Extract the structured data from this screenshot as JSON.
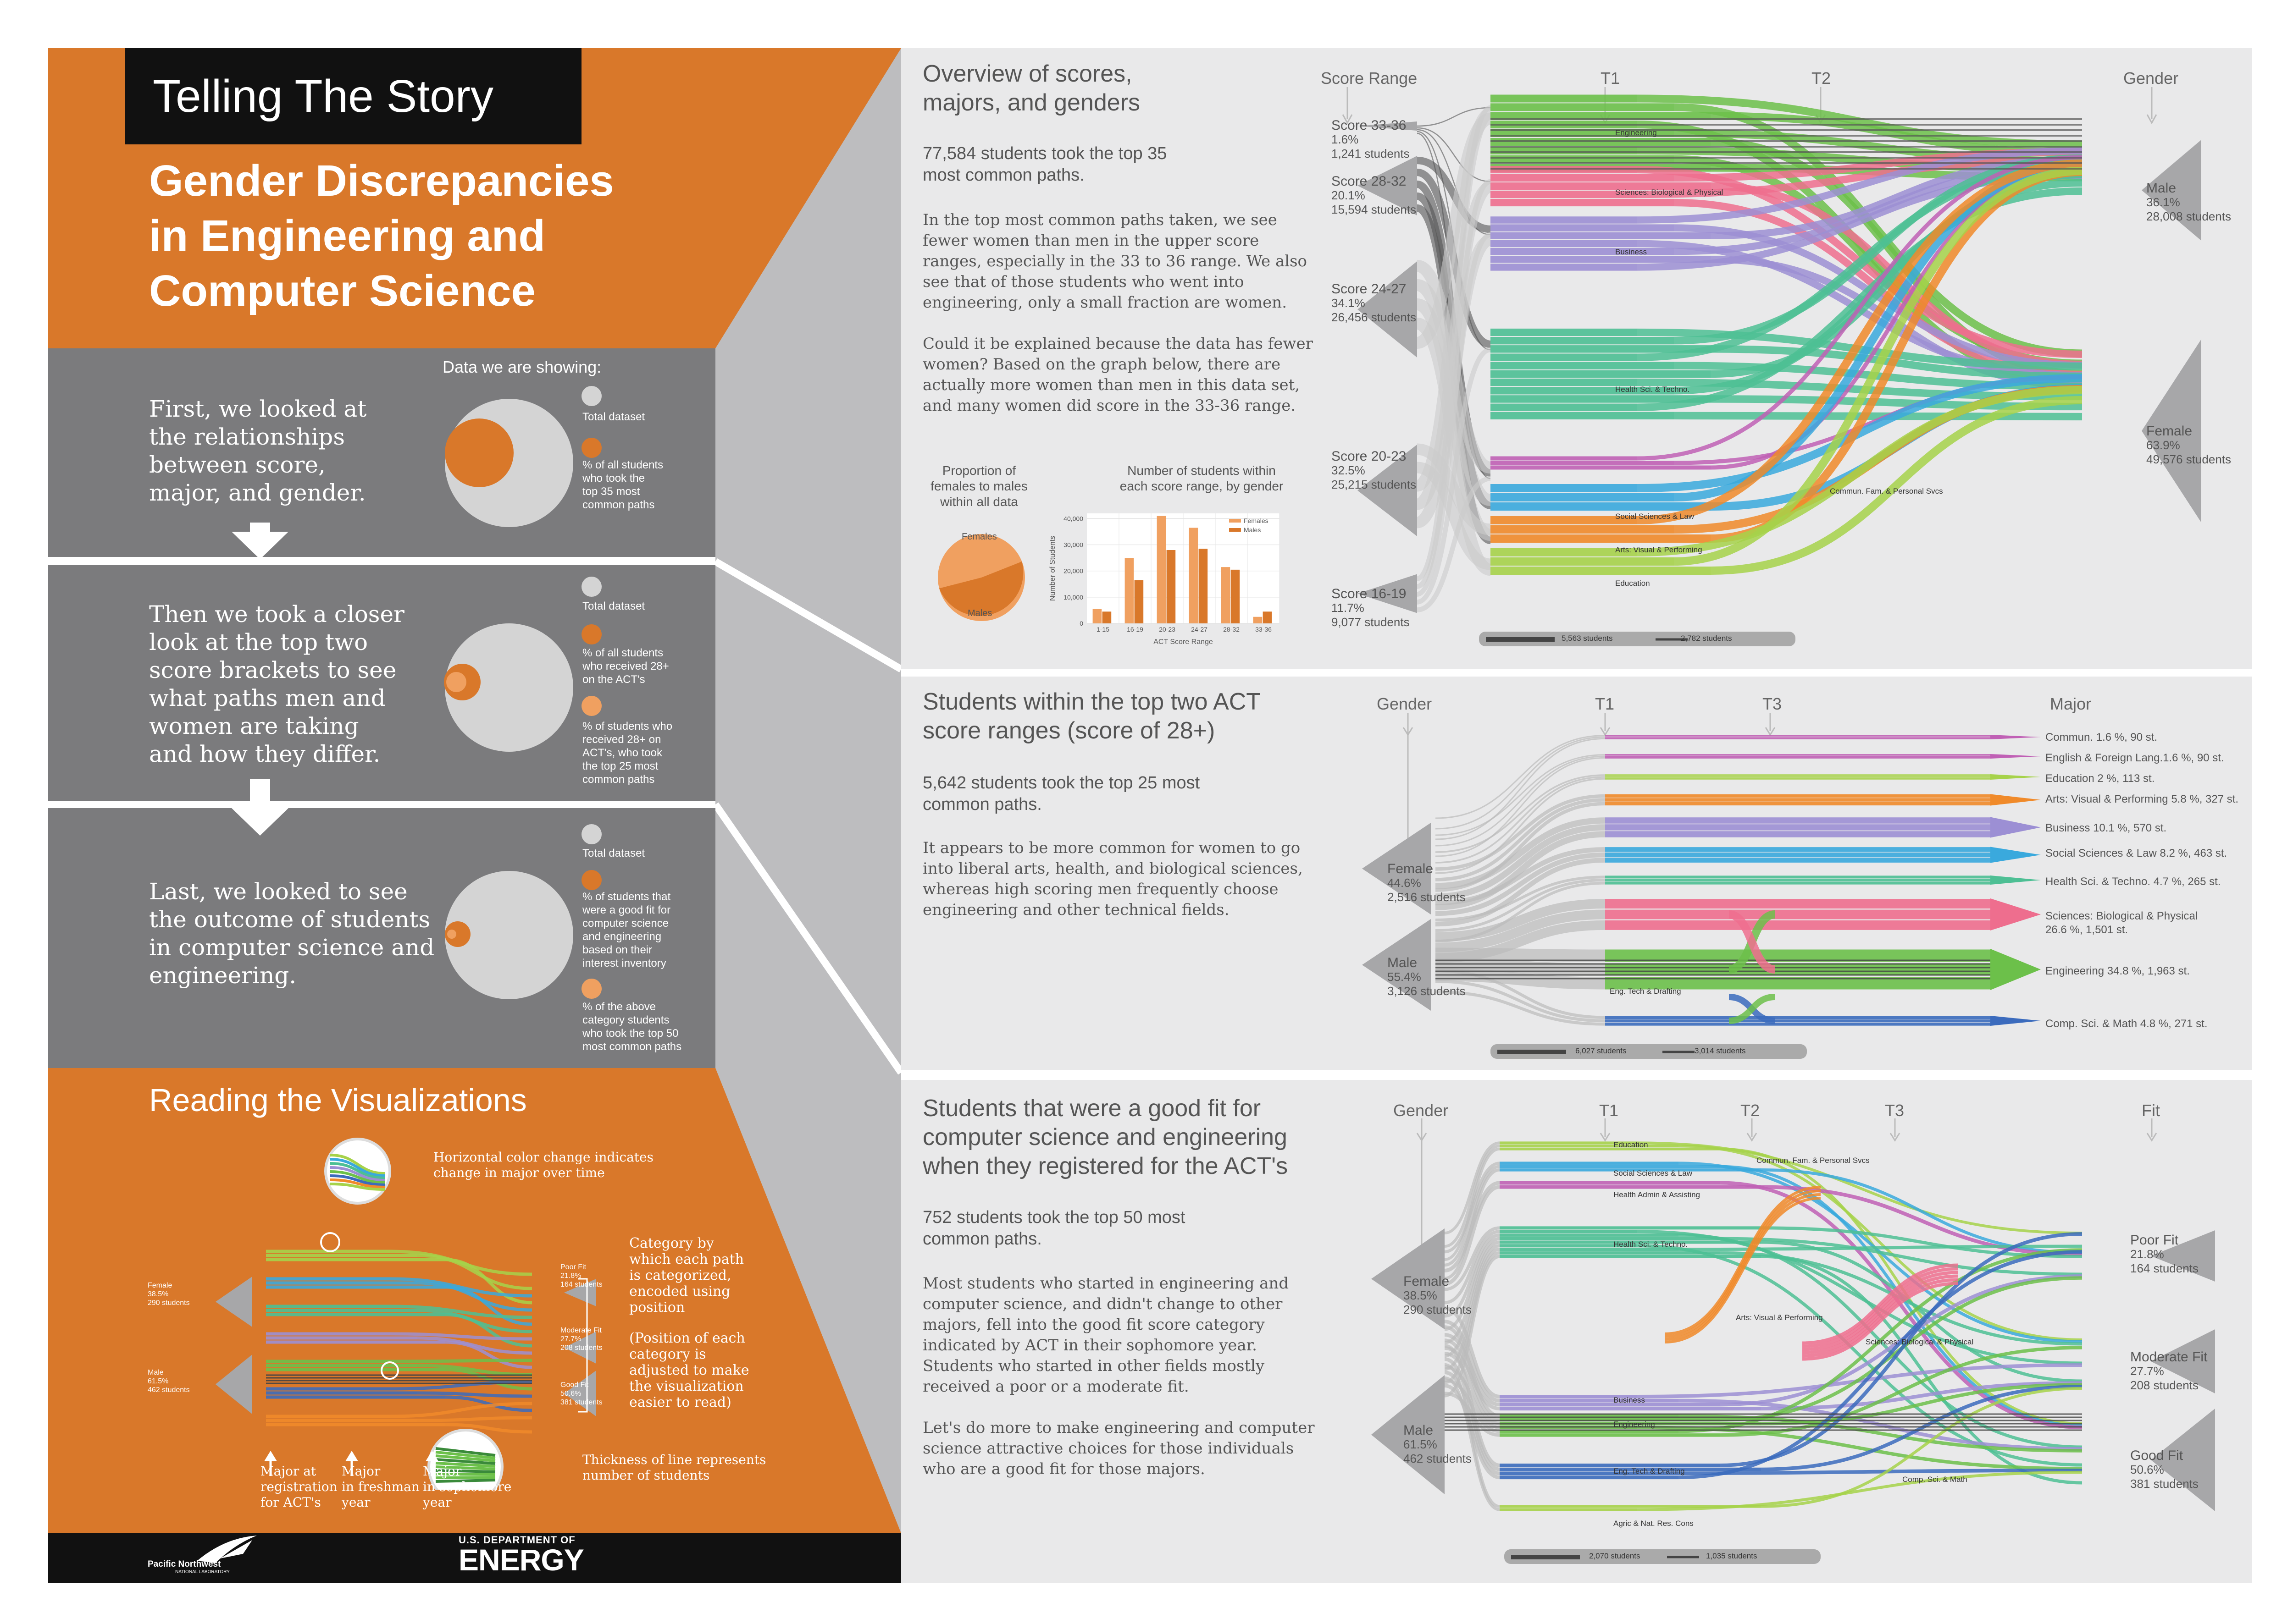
{
  "header": {
    "tag": "Telling The Story",
    "title_lines": [
      "Gender Discrepancies",
      "in Engineering and",
      "Computer Science"
    ]
  },
  "colors": {
    "orange": "#d9782a",
    "dark_gray": "#7b7b7d",
    "panel_gray": "#e9e9ea",
    "light_dot": "#d4d4d4",
    "engineering": "#6cc04a",
    "sciences_bio": "#ee6e8e",
    "business": "#9c8fd4",
    "health": "#4dbf94",
    "social": "#3aa9dd",
    "arts": "#f08a2a",
    "education": "#a6d24a",
    "communications": "#c060b5",
    "comp_sci": "#3b6bbd"
  },
  "steps": [
    {
      "text_lines": [
        "First, we looked at",
        "the relationships",
        "between score,",
        "major, and gender."
      ],
      "legend_heading": "Data we are showing:",
      "legend": [
        {
          "label_lines": [
            "Total dataset"
          ],
          "color": "#d4d4d4"
        },
        {
          "label_lines": [
            "% of all students",
            "who took the",
            "top 35 most",
            "common paths"
          ],
          "color": "#d9782a"
        }
      ]
    },
    {
      "text_lines": [
        "Then we took a closer",
        "look at the top two",
        "score brackets to see",
        "what paths men and",
        "women are taking",
        "and how they differ."
      ],
      "legend": [
        {
          "label_lines": [
            "Total dataset"
          ],
          "color": "#d4d4d4"
        },
        {
          "label_lines": [
            "% of all students",
            "who received 28+",
            "on the ACT's"
          ],
          "color": "#d9782a"
        },
        {
          "label_lines": [
            "% of students who",
            "received 28+ on",
            "ACT's, who took",
            "the top 25 most",
            "common paths"
          ],
          "color": "#f0a060"
        }
      ]
    },
    {
      "text_lines": [
        "Last, we looked to see",
        "the outcome of students",
        "in computer science and",
        "engineering."
      ],
      "legend": [
        {
          "label_lines": [
            "Total dataset"
          ],
          "color": "#d4d4d4"
        },
        {
          "label_lines": [
            "% of students that",
            "were a good fit for",
            "computer science",
            "and engineering",
            "based on their",
            "interest inventory"
          ],
          "color": "#d9782a"
        },
        {
          "label_lines": [
            "% of the above",
            "category students",
            "who took the top 50",
            "most common paths"
          ],
          "color": "#f0a060"
        }
      ]
    }
  ],
  "reading": {
    "title": "Reading the Visualizations",
    "ann_color": [
      "Horizontal color change indicates",
      "change in major over time"
    ],
    "ann_category": [
      "Category by",
      "which each path",
      "is categorized,",
      "encoded using",
      "position"
    ],
    "ann_position": [
      "(Position of each",
      "category is",
      "adjusted to make",
      "the visualization",
      "easier to read)"
    ],
    "ann_thickness": [
      "Thickness of line represents",
      "number of students"
    ],
    "mini_left": [
      {
        "lines": [
          "Female",
          "38.5%",
          "290 students"
        ]
      },
      {
        "lines": [
          "Male",
          "61.5%",
          "462 students"
        ]
      }
    ],
    "mini_right": [
      {
        "lines": [
          "Poor Fit",
          "21.8%",
          "164 students"
        ]
      },
      {
        "lines": [
          "Moderate Fit",
          "27.7%",
          "208 students"
        ]
      },
      {
        "lines": [
          "Good Fit",
          "50.6%",
          "381 students"
        ]
      }
    ],
    "time_labels": [
      {
        "lines": [
          "Major at",
          "registration",
          "for ACT's"
        ]
      },
      {
        "lines": [
          "Major",
          "in freshman",
          "year"
        ]
      },
      {
        "lines": [
          "Major",
          "in sophomore",
          "year"
        ]
      }
    ]
  },
  "footer": {
    "pnnl_line1": "Pacific Northwest",
    "pnnl_line2": "NATIONAL LABORATORY",
    "doe_line1": "U.S. DEPARTMENT OF",
    "doe_line2": "ENERGY"
  },
  "panel1": {
    "title_lines": [
      "Overview of scores,",
      "majors, and genders"
    ],
    "subtitle_lines": [
      "77,584 students took the top 35",
      "most common paths."
    ],
    "body1": [
      "In the top most common paths taken, we see",
      "fewer women than men in the upper score",
      "ranges, especially in the 33 to 36 range. We also",
      "see that of those students who went into",
      "engineering, only a small fraction are women."
    ],
    "body2": [
      "Could it be explained because the data has fewer",
      "women? Based on the graph below, there are",
      "actually more women than men in this data set,",
      "and many women did score in the 33-36 range."
    ],
    "pie_title": [
      "Proportion of",
      "females to males",
      "within all data"
    ],
    "pie_labels": [
      "Females",
      "Males"
    ],
    "bar_title": [
      "Number of students within",
      "each score range, by gender"
    ],
    "axes": [
      "Score Range",
      "T1",
      "T2",
      "Gender"
    ],
    "left_nodes": [
      {
        "lines": [
          "Score 33-36",
          "1.6%",
          "1,241 students"
        ]
      },
      {
        "lines": [
          "Score 28-32",
          "20.1%",
          "15,594 students"
        ]
      },
      {
        "lines": [
          "Score 24-27",
          "34.1%",
          "26,456 students"
        ]
      },
      {
        "lines": [
          "Score 20-23",
          "32.5%",
          "25,215 students"
        ]
      },
      {
        "lines": [
          "Score 16-19",
          "11.7%",
          "9,077 students"
        ]
      }
    ],
    "right_nodes": [
      {
        "lines": [
          "Male",
          "36.1%",
          "28,008 students"
        ]
      },
      {
        "lines": [
          "Female",
          "63.9%",
          "49,576 students"
        ]
      }
    ],
    "categories": [
      "Engineering",
      "Sciences: Biological & Physical",
      "Business",
      "Health Sci. & Techno.",
      "Commun. Fam. & Personal Svcs",
      "Social Sciences & Law",
      "Arts: Visual & Performing",
      "Education"
    ],
    "key": [
      "5,563 students",
      "2,782 students"
    ]
  },
  "chart_data": [
    {
      "type": "pie",
      "title": "Proportion of females to males within all data",
      "categories": [
        "Females",
        "Males"
      ],
      "values": [
        54,
        46
      ]
    },
    {
      "type": "bar",
      "title": "Number of students within each score range, by gender",
      "categories": [
        "1-15",
        "16-19",
        "20-23",
        "24-27",
        "28-32",
        "33-36"
      ],
      "series": [
        {
          "name": "Females",
          "values": [
            5500,
            25000,
            41000,
            36500,
            21500,
            2500
          ],
          "color": "#f0a060"
        },
        {
          "name": "Males",
          "values": [
            4500,
            16500,
            28000,
            28500,
            20500,
            4500
          ],
          "color": "#d9782a"
        }
      ],
      "xlabel": "ACT Score Range",
      "ylabel": "Number of Students",
      "yticks": [
        "0",
        "10,000",
        "20,000",
        "30,000",
        "40,000"
      ],
      "ylim": [
        0,
        42000
      ]
    }
  ],
  "panel2": {
    "title_lines": [
      "Students within the top two ACT",
      "score ranges (score of 28+)"
    ],
    "subtitle_lines": [
      "5,642 students took the top 25 most",
      "common paths."
    ],
    "body": [
      "It appears to be more common for women to go",
      "into liberal arts, health, and biological sciences,",
      "whereas high scoring men frequently choose",
      "engineering and other technical fields."
    ],
    "axes": [
      "Gender",
      "T1",
      "T3",
      "Major"
    ],
    "left_nodes": [
      {
        "lines": [
          "Female",
          "44.6%",
          "2,516 students"
        ]
      },
      {
        "lines": [
          "Male",
          "55.4%",
          "3,126 students"
        ]
      }
    ],
    "majors": [
      {
        "label": "Commun. 1.6 %, 90 st.",
        "color": "#c060b5"
      },
      {
        "label": "English & Foreign Lang.1.6 %, 90 st.",
        "color": "#c060b5"
      },
      {
        "label": "Education 2 %, 113 st.",
        "color": "#a6d24a"
      },
      {
        "label": "Arts: Visual & Performing 5.8 %, 327 st.",
        "color": "#f08a2a"
      },
      {
        "label": "Business 10.1 %, 570 st.",
        "color": "#9c8fd4"
      },
      {
        "label": "Social Sciences & Law 8.2 %, 463 st.",
        "color": "#3aa9dd"
      },
      {
        "label": "Health Sci. & Techno. 4.7 %, 265 st.",
        "color": "#4dbf94"
      },
      {
        "label": "Sciences: Biological & Physical",
        "label2": "26.6 %, 1,501 st.",
        "color": "#ee6e8e"
      },
      {
        "label": "Engineering 34.8 %, 1,963 st.",
        "color": "#6cc04a"
      },
      {
        "label": "Comp. Sci. & Math 4.8 %, 271 st.",
        "color": "#3b6bbd"
      }
    ],
    "categories": [
      "Eng. Tech & Drafting"
    ],
    "key": [
      "6,027 students",
      "3,014 students"
    ]
  },
  "panel3": {
    "title_lines": [
      "Students that were a good fit for",
      "computer science and engineering",
      "when they registered for the ACT's"
    ],
    "subtitle_lines": [
      "752 students took the top 50 most",
      "common paths."
    ],
    "body1": [
      "Most students who started in engineering and",
      "computer science, and didn't change to other",
      "majors, fell into the good fit score category",
      "indicated by ACT in their sophomore year.",
      "Students who started in other fields mostly",
      "received a poor or a moderate fit."
    ],
    "body2": [
      "Let's do more to make engineering and computer",
      "science attractive choices for those individuals",
      "who are a good fit for those majors."
    ],
    "axes": [
      "Gender",
      "T1",
      "T2",
      "T3",
      "Fit"
    ],
    "left_nodes": [
      {
        "lines": [
          "Female",
          "38.5%",
          "290 students"
        ]
      },
      {
        "lines": [
          "Male",
          "61.5%",
          "462 students"
        ]
      }
    ],
    "right_nodes": [
      {
        "lines": [
          "Poor Fit",
          "21.8%",
          "164 students"
        ]
      },
      {
        "lines": [
          "Moderate Fit",
          "27.7%",
          "208 students"
        ]
      },
      {
        "lines": [
          "Good Fit",
          "50.6%",
          "381 students"
        ]
      }
    ],
    "categories": [
      "Education",
      "Social Sciences & Law",
      "Health Admin & Assisting",
      "Health Sci. & Techno.",
      "Business",
      "Engineering",
      "Eng. Tech & Drafting",
      "Agric & Nat. Res. Cons",
      "Commun. Fam. & Personal Svcs",
      "Arts: Visual & Performing",
      "Sciences: Biological & Physical",
      "Comp. Sci. & Math"
    ],
    "key": [
      "2,070 students",
      "1,035 students"
    ]
  }
}
